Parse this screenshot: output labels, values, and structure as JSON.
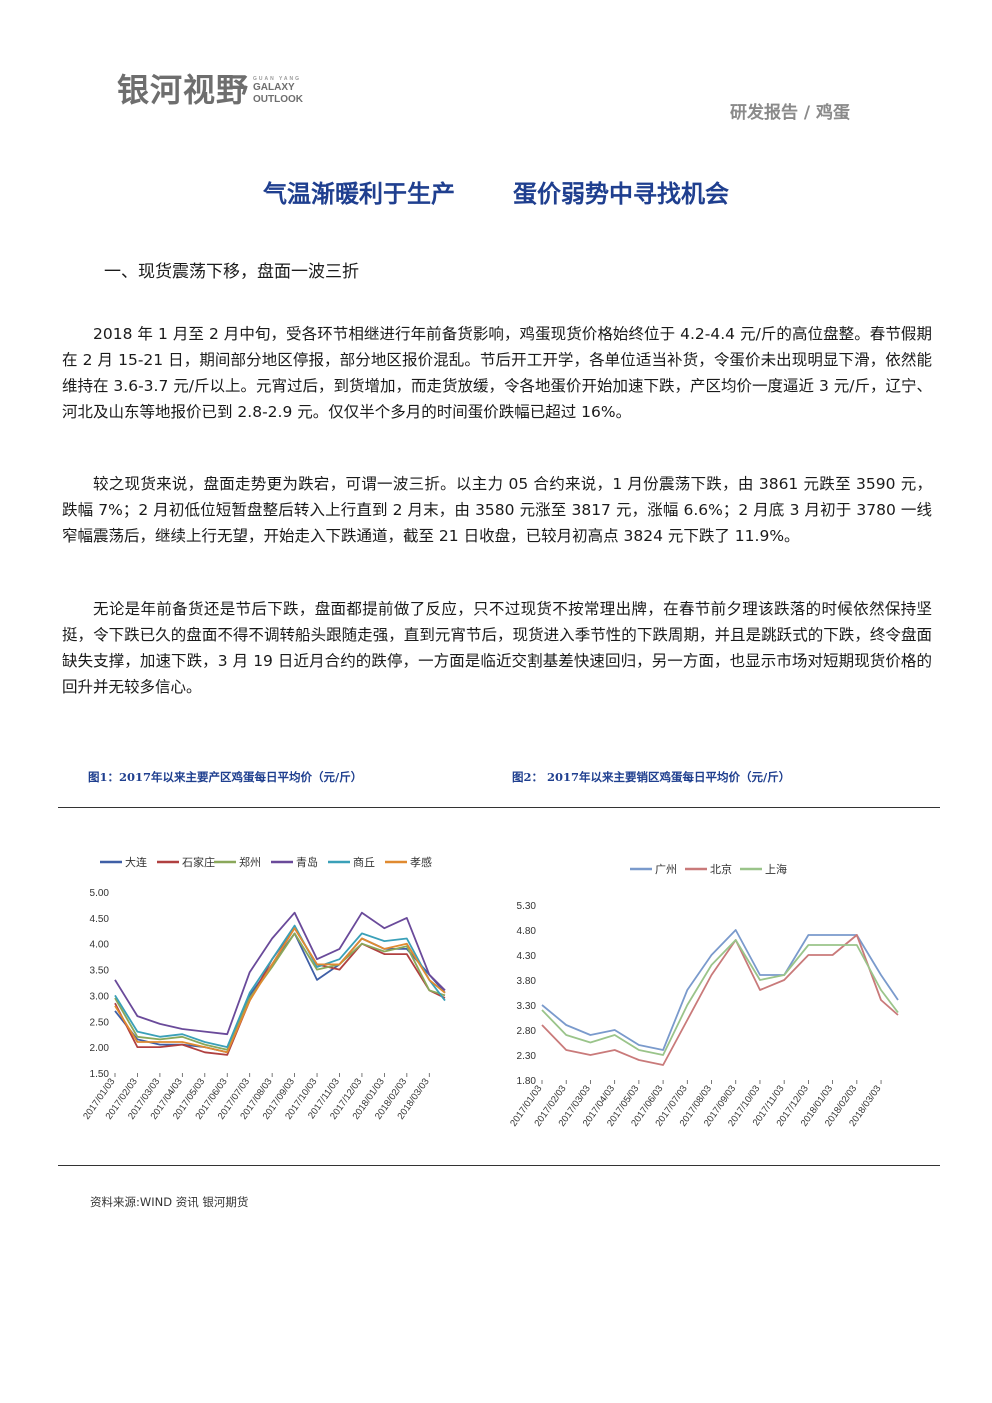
{
  "header": {
    "logo_cn": "银河视野",
    "logo_en_small": "GUAN YANG",
    "logo_en_line1": "GALAXY",
    "logo_en_line2": "OUTLOOK",
    "report_tag": "研发报告 / 鸡蛋"
  },
  "title": {
    "part1": "气温渐暖利于生产",
    "part2": "蛋价弱势中寻找机会"
  },
  "section_heading": "一、现货震荡下移，盘面一波三折",
  "paragraphs": [
    "2018 年 1 月至 2 月中旬，受各环节相继进行年前备货影响，鸡蛋现货价格始终位于 4.2-4.4 元/斤的高位盘整。春节假期在 2 月 15-21 日，期间部分地区停报，部分地区报价混乱。节后开工开学，各单位适当补货，令蛋价未出现明显下滑，依然能维持在 3.6-3.7 元/斤以上。元宵过后，到货增加，而走货放缓，令各地蛋价开始加速下跌，产区均价一度逼近 3 元/斤，辽宁、河北及山东等地报价已到 2.8-2.9 元。仅仅半个多月的时间蛋价跌幅已超过 16%。",
    "较之现货来说，盘面走势更为跌宕，可谓一波三折。以主力 05 合约来说，1 月份震荡下跌，由 3861 元跌至 3590 元，跌幅 7%；2 月初低位短暂盘整后转入上行直到 2 月末，由 3580 元涨至 3817 元，涨幅 6.6%；2 月底 3 月初于 3780 一线窄幅震荡后，继续上行无望，开始走入下跌通道，截至 21 日收盘，已较月初高点 3824 元下跌了 11.9%。",
    "无论是年前备货还是节后下跌，盘面都提前做了反应，只不过现货不按常理出牌，在春节前夕理该跌落的时候依然保持坚挺，令下跌已久的盘面不得不调转船头跟随走强，直到元宵节后，现货进入季节性的下跌周期，并且是跳跃式的下跌，终令盘面缺失支撑，加速下跌，3 月 19 日近月合约的跌停，一方面是临近交割基差快速回归，另一方面，也显示市场对短期现货价格的回升并无较多信心。"
  ],
  "figures": [
    {
      "caption": "图1：2017年以来主要产区鸡蛋每日平均价（元/斤）"
    },
    {
      "caption": "图2：  2017年以来主要销区鸡蛋每日平均价（元/斤）"
    }
  ],
  "source_note": "资料来源:WIND 资讯   银河期货",
  "chart_data": [
    {
      "type": "line",
      "ylim": [
        1.5,
        5.0
      ],
      "y_ticks": [
        "5.00",
        "4.50",
        "4.00",
        "3.50",
        "3.00",
        "2.50",
        "2.00",
        "1.50"
      ],
      "x_tick_labels": [
        "2017/01/03",
        "2017/02/03",
        "2017/03/03",
        "2017/04/03",
        "2017/05/03",
        "2017/06/03",
        "2017/07/03",
        "2017/08/03",
        "2017/09/03",
        "2017/10/03",
        "2017/11/03",
        "2017/12/03",
        "2018/01/03",
        "2018/02/03",
        "2018/03/03"
      ],
      "x_months": [
        0,
        1,
        2,
        3,
        4,
        5,
        6,
        7,
        8,
        9,
        10,
        11,
        12,
        13,
        14,
        14.7
      ],
      "legend_position": "top",
      "series": [
        {
          "name": "大连",
          "color": "#3f5fa6",
          "values": [
            2.7,
            2.15,
            2.05,
            2.05,
            2.0,
            1.9,
            3.0,
            3.6,
            4.2,
            3.3,
            3.6,
            4.1,
            3.9,
            3.9,
            3.4,
            3.05
          ]
        },
        {
          "name": "石家庄",
          "color": "#b04040",
          "values": [
            2.85,
            2.0,
            2.0,
            2.05,
            1.9,
            1.85,
            2.9,
            3.7,
            4.3,
            3.6,
            3.5,
            4.0,
            3.8,
            3.8,
            3.1,
            2.95
          ]
        },
        {
          "name": "郑州",
          "color": "#8aa85a",
          "values": [
            2.95,
            2.2,
            2.15,
            2.2,
            2.05,
            1.95,
            2.95,
            3.55,
            4.2,
            3.5,
            3.6,
            4.0,
            3.85,
            3.95,
            3.1,
            3.0
          ]
        },
        {
          "name": "青岛",
          "color": "#6a4a9a",
          "values": [
            3.3,
            2.6,
            2.45,
            2.35,
            2.3,
            2.25,
            3.45,
            4.1,
            4.6,
            3.7,
            3.9,
            4.6,
            4.3,
            4.5,
            3.4,
            3.1
          ]
        },
        {
          "name": "商丘",
          "color": "#3aa0b8",
          "values": [
            3.0,
            2.3,
            2.2,
            2.25,
            2.1,
            2.0,
            3.05,
            3.7,
            4.35,
            3.55,
            3.7,
            4.2,
            4.05,
            4.1,
            3.3,
            2.9
          ]
        },
        {
          "name": "孝感",
          "color": "#e08a30",
          "values": [
            2.8,
            2.1,
            2.1,
            2.1,
            2.0,
            1.9,
            2.9,
            3.6,
            4.3,
            3.6,
            3.6,
            4.1,
            3.9,
            4.0,
            3.3,
            3.05
          ]
        }
      ]
    },
    {
      "type": "line",
      "ylim": [
        1.8,
        5.3
      ],
      "y_ticks": [
        "5.30",
        "4.80",
        "4.30",
        "3.80",
        "3.30",
        "2.80",
        "2.30",
        "1.80"
      ],
      "x_tick_labels": [
        "2017/01/03",
        "2017/02/03",
        "2017/03/03",
        "2017/04/03",
        "2017/05/03",
        "2017/06/03",
        "2017/07/03",
        "2017/08/03",
        "2017/09/03",
        "2017/10/03",
        "2017/11/03",
        "2017/12/03",
        "2018/01/03",
        "2018/02/03",
        "2018/03/03"
      ],
      "x_months": [
        0,
        1,
        2,
        3,
        4,
        5,
        6,
        7,
        8,
        9,
        10,
        11,
        12,
        13,
        14,
        14.7
      ],
      "legend_position": "top",
      "series": [
        {
          "name": "广州",
          "color": "#7a9acc",
          "values": [
            3.3,
            2.9,
            2.7,
            2.8,
            2.5,
            2.4,
            3.6,
            4.3,
            4.8,
            3.9,
            3.9,
            4.7,
            4.7,
            4.7,
            3.9,
            3.4
          ]
        },
        {
          "name": "北京",
          "color": "#c97a7a",
          "values": [
            2.9,
            2.4,
            2.3,
            2.4,
            2.2,
            2.1,
            3.0,
            3.9,
            4.6,
            3.6,
            3.8,
            4.3,
            4.3,
            4.7,
            3.4,
            3.1
          ]
        },
        {
          "name": "上海",
          "color": "#9ac48a",
          "values": [
            3.2,
            2.7,
            2.55,
            2.7,
            2.4,
            2.3,
            3.3,
            4.1,
            4.6,
            3.8,
            3.9,
            4.5,
            4.5,
            4.5,
            3.6,
            3.15
          ]
        }
      ]
    }
  ]
}
